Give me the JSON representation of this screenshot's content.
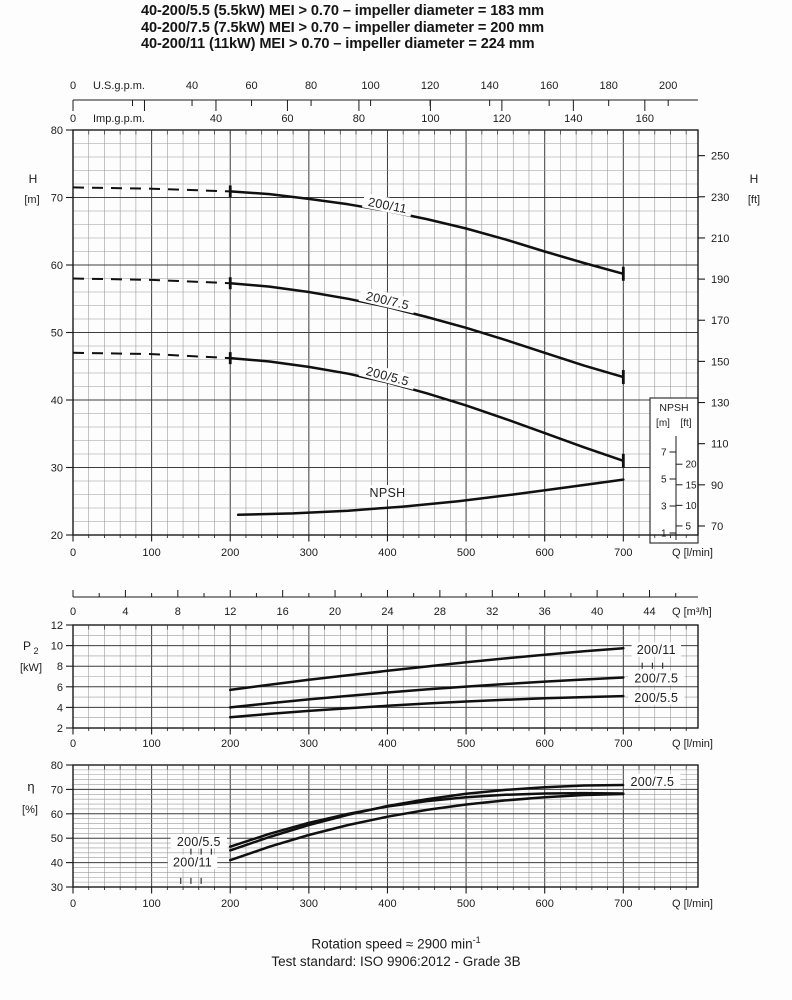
{
  "title_lines": [
    "40-200/5.5 (5.5kW) MEI > 0.70 – impeller diameter = 183 mm",
    "40-200/7.5 (7.5kW) MEI > 0.70 – impeller diameter = 200 mm",
    "40-200/11  (11kW)  MEI > 0.70 – impeller diameter = 224 mm"
  ],
  "footer": {
    "line1_text": "Rotation speed ≈ 2900 min",
    "line1_sup": "-1",
    "line2": "Test standard: ISO 9906:2012 - Grade 3B"
  },
  "chart_data": [
    {
      "id": "head",
      "type": "line",
      "title": "Head vs flow",
      "x": {
        "label": "Q [l/min]",
        "ticks": [
          0,
          100,
          200,
          300,
          400,
          500,
          600,
          700
        ],
        "range": [
          0,
          795
        ],
        "minor_step": 20
      },
      "x_top_scales": [
        {
          "name": "U.S.g.p.m.",
          "ticks": [
            0,
            40,
            60,
            80,
            100,
            120,
            140,
            160,
            180,
            200
          ],
          "tick_step": 20,
          "max_tick": 200,
          "lmin_per_unit": 3.7854
        },
        {
          "name": "Imp.g.p.m.",
          "ticks": [
            0,
            40,
            60,
            80,
            100,
            120,
            140,
            160
          ],
          "tick_step": 20,
          "max_tick": 160,
          "lmin_per_unit": 4.5461
        }
      ],
      "y_left": {
        "name": "H",
        "unit": "[m]",
        "ticks": [
          20,
          30,
          40,
          50,
          60,
          70,
          80
        ],
        "range": [
          20,
          80
        ],
        "minor_step": 2,
        "major_step": 10
      },
      "y_right": {
        "name": "H",
        "unit": "[ft]",
        "ticks": [
          70,
          90,
          110,
          130,
          150,
          170,
          190,
          210,
          230,
          250
        ],
        "m_per_ft": 0.3048
      },
      "series": [
        {
          "name": "200/11",
          "dashed_points": [
            [
              0,
              71.5
            ],
            [
              100,
              71.3
            ],
            [
              200,
              70.9
            ]
          ],
          "points": [
            [
              200,
              70.9
            ],
            [
              250,
              70.5
            ],
            [
              300,
              69.8
            ],
            [
              350,
              69.0
            ],
            [
              400,
              68.0
            ],
            [
              450,
              66.8
            ],
            [
              500,
              65.4
            ],
            [
              550,
              63.8
            ],
            [
              600,
              62.0
            ],
            [
              650,
              60.3
            ],
            [
              700,
              58.7
            ]
          ],
          "start_bar": true,
          "end_bar": true,
          "label": {
            "q": 400,
            "v": 68.8,
            "angle": 11
          }
        },
        {
          "name": "200/7.5",
          "dashed_points": [
            [
              0,
              58.0
            ],
            [
              100,
              57.8
            ],
            [
              200,
              57.3
            ]
          ],
          "points": [
            [
              200,
              57.3
            ],
            [
              250,
              56.8
            ],
            [
              300,
              56.0
            ],
            [
              350,
              55.0
            ],
            [
              400,
              53.8
            ],
            [
              450,
              52.3
            ],
            [
              500,
              50.7
            ],
            [
              550,
              48.9
            ],
            [
              600,
              47.0
            ],
            [
              650,
              45.1
            ],
            [
              700,
              43.4
            ]
          ],
          "start_bar": true,
          "end_bar": true,
          "label": {
            "q": 400,
            "v": 54.7,
            "angle": 13
          }
        },
        {
          "name": "200/5.5",
          "dashed_points": [
            [
              0,
              47.0
            ],
            [
              100,
              46.8
            ],
            [
              200,
              46.2
            ]
          ],
          "points": [
            [
              200,
              46.2
            ],
            [
              250,
              45.7
            ],
            [
              300,
              44.9
            ],
            [
              350,
              43.9
            ],
            [
              400,
              42.6
            ],
            [
              450,
              41.0
            ],
            [
              500,
              39.2
            ],
            [
              550,
              37.2
            ],
            [
              600,
              35.1
            ],
            [
              650,
              33.0
            ],
            [
              700,
              31.0
            ]
          ],
          "start_bar": true,
          "end_bar": true,
          "label": {
            "q": 400,
            "v": 43.5,
            "angle": 14.5
          }
        },
        {
          "name": "NPSH",
          "points": [
            [
              210,
              23.0
            ],
            [
              280,
              23.2
            ],
            [
              350,
              23.6
            ],
            [
              420,
              24.2
            ],
            [
              490,
              25.0
            ],
            [
              560,
              26.0
            ],
            [
              630,
              27.1
            ],
            [
              700,
              28.2
            ]
          ],
          "label": {
            "q": 400,
            "v": 26.2,
            "angle": 0
          }
        }
      ],
      "npsh_inset": {
        "title": "NPSH",
        "m_unit": "[m]",
        "ft_unit": "[ft]",
        "m_ticks": [
          7,
          5,
          3,
          1
        ],
        "ft_ticks": [
          20,
          15,
          10,
          5
        ],
        "m_per_ft": 0.3048
      }
    },
    {
      "id": "power",
      "type": "line",
      "title": "Shaft power vs flow",
      "x_top": {
        "label": "Q [m³/h]",
        "ticks": [
          0,
          4,
          8,
          12,
          16,
          20,
          24,
          28,
          32,
          36,
          40,
          44
        ],
        "tick_minor_step": 2,
        "max_tick": 46,
        "lmin_per_unit": 16.6667
      },
      "x": {
        "label": "Q [l/min]",
        "ticks": [
          0,
          100,
          200,
          300,
          400,
          500,
          600,
          700
        ],
        "minor_step": 20
      },
      "y": {
        "name": "P",
        "sub": "2",
        "unit": "[kW]",
        "ticks": [
          2,
          4,
          6,
          8,
          10,
          12
        ],
        "range": [
          2,
          12
        ],
        "minor_step": 1,
        "major_step": 2
      },
      "series": [
        {
          "name": "200/11",
          "points": [
            [
              200,
              5.7
            ],
            [
              250,
              6.2
            ],
            [
              300,
              6.68
            ],
            [
              350,
              7.12
            ],
            [
              400,
              7.55
            ],
            [
              450,
              7.97
            ],
            [
              500,
              8.38
            ],
            [
              550,
              8.76
            ],
            [
              600,
              9.12
            ],
            [
              650,
              9.45
            ],
            [
              700,
              9.75
            ]
          ],
          "label": {
            "q": 742,
            "v": 9.55
          }
        },
        {
          "name": "200/7.5",
          "points": [
            [
              200,
              4.0
            ],
            [
              250,
              4.4
            ],
            [
              300,
              4.78
            ],
            [
              350,
              5.12
            ],
            [
              400,
              5.45
            ],
            [
              450,
              5.75
            ],
            [
              500,
              6.02
            ],
            [
              550,
              6.27
            ],
            [
              600,
              6.5
            ],
            [
              650,
              6.71
            ],
            [
              700,
              6.9
            ]
          ],
          "label": {
            "q": 742,
            "v": 6.8
          }
        },
        {
          "name": "200/5.5",
          "points": [
            [
              200,
              3.05
            ],
            [
              250,
              3.37
            ],
            [
              300,
              3.66
            ],
            [
              350,
              3.92
            ],
            [
              400,
              4.16
            ],
            [
              450,
              4.38
            ],
            [
              500,
              4.57
            ],
            [
              550,
              4.74
            ],
            [
              600,
              4.88
            ],
            [
              650,
              5.0
            ],
            [
              700,
              5.1
            ]
          ],
          "label": {
            "q": 742,
            "v": 4.9
          }
        }
      ],
      "leader_ticks": [
        [
          724,
          8.05
        ],
        [
          737,
          8.05
        ],
        [
          750,
          8.05
        ]
      ]
    },
    {
      "id": "efficiency",
      "type": "line",
      "title": "Efficiency vs flow",
      "x": {
        "label": "Q [l/min]",
        "ticks": [
          0,
          100,
          200,
          300,
          400,
          500,
          600,
          700
        ],
        "minor_step": 20
      },
      "y": {
        "name": "η",
        "unit": "[%]",
        "ticks": [
          30,
          40,
          50,
          60,
          70,
          80
        ],
        "range": [
          30,
          80
        ],
        "minor_step": 2,
        "major_step": 10
      },
      "series": [
        {
          "name": "200/7.5",
          "points": [
            [
              200,
              45.0
            ],
            [
              250,
              50.5
            ],
            [
              300,
              55.4
            ],
            [
              350,
              59.6
            ],
            [
              400,
              63.2
            ],
            [
              450,
              66.0
            ],
            [
              500,
              68.2
            ],
            [
              550,
              69.8
            ],
            [
              600,
              70.9
            ],
            [
              650,
              71.6
            ],
            [
              700,
              71.8
            ]
          ],
          "label": {
            "q": 737,
            "v": 73
          }
        },
        {
          "name": "200/5.5",
          "points": [
            [
              200,
              46.5
            ],
            [
              250,
              51.8
            ],
            [
              300,
              56.3
            ],
            [
              350,
              60.0
            ],
            [
              400,
              63.0
            ],
            [
              450,
              65.2
            ],
            [
              500,
              66.8
            ],
            [
              550,
              67.8
            ],
            [
              600,
              68.3
            ],
            [
              650,
              68.5
            ],
            [
              700,
              68.3
            ]
          ],
          "label": {
            "q": 160,
            "v": 48.5
          }
        },
        {
          "name": "200/11",
          "points": [
            [
              200,
              41.0
            ],
            [
              250,
              46.5
            ],
            [
              300,
              51.3
            ],
            [
              350,
              55.4
            ],
            [
              400,
              58.8
            ],
            [
              450,
              61.6
            ],
            [
              500,
              63.8
            ],
            [
              550,
              65.5
            ],
            [
              600,
              66.8
            ],
            [
              650,
              67.7
            ],
            [
              700,
              68.1
            ]
          ],
          "label": {
            "q": 152,
            "v": 40
          }
        }
      ],
      "leader_ticks": [
        [
          150,
          44.5
        ],
        [
          163,
          44.5
        ],
        [
          176,
          44.5
        ],
        [
          137,
          32.5
        ],
        [
          150,
          32.5
        ],
        [
          163,
          32.5
        ]
      ]
    }
  ]
}
